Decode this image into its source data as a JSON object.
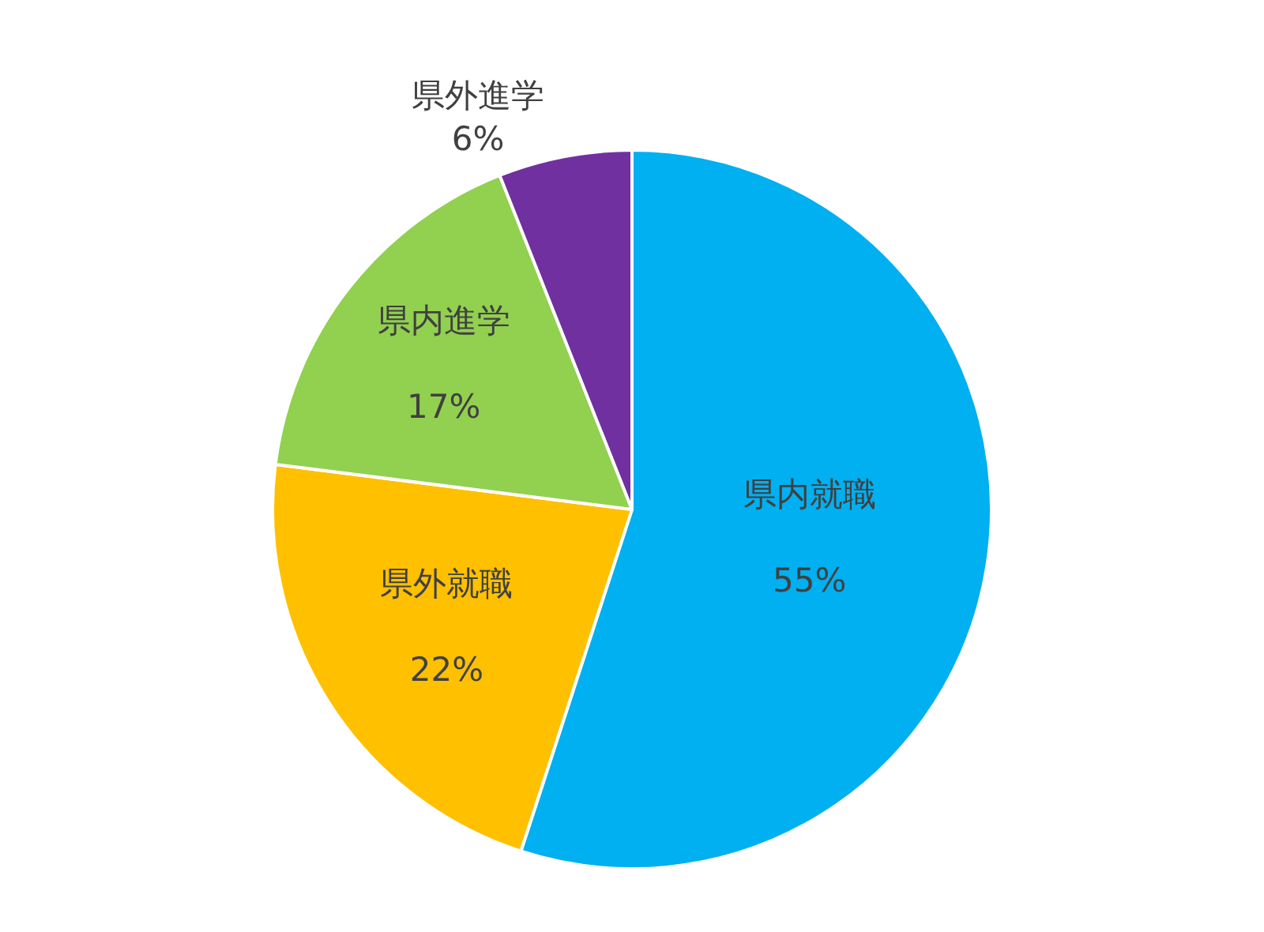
{
  "chart_data": {
    "type": "pie",
    "categories": [
      "県内就職",
      "県外就職",
      "県内進学",
      "県外進学"
    ],
    "values": [
      55,
      22,
      17,
      6
    ],
    "colors": [
      "#00b0f0",
      "#ffc000",
      "#92d050",
      "#7030a0"
    ],
    "value_labels": [
      "55%",
      "22%",
      "17%",
      "6%"
    ],
    "legend": false
  }
}
